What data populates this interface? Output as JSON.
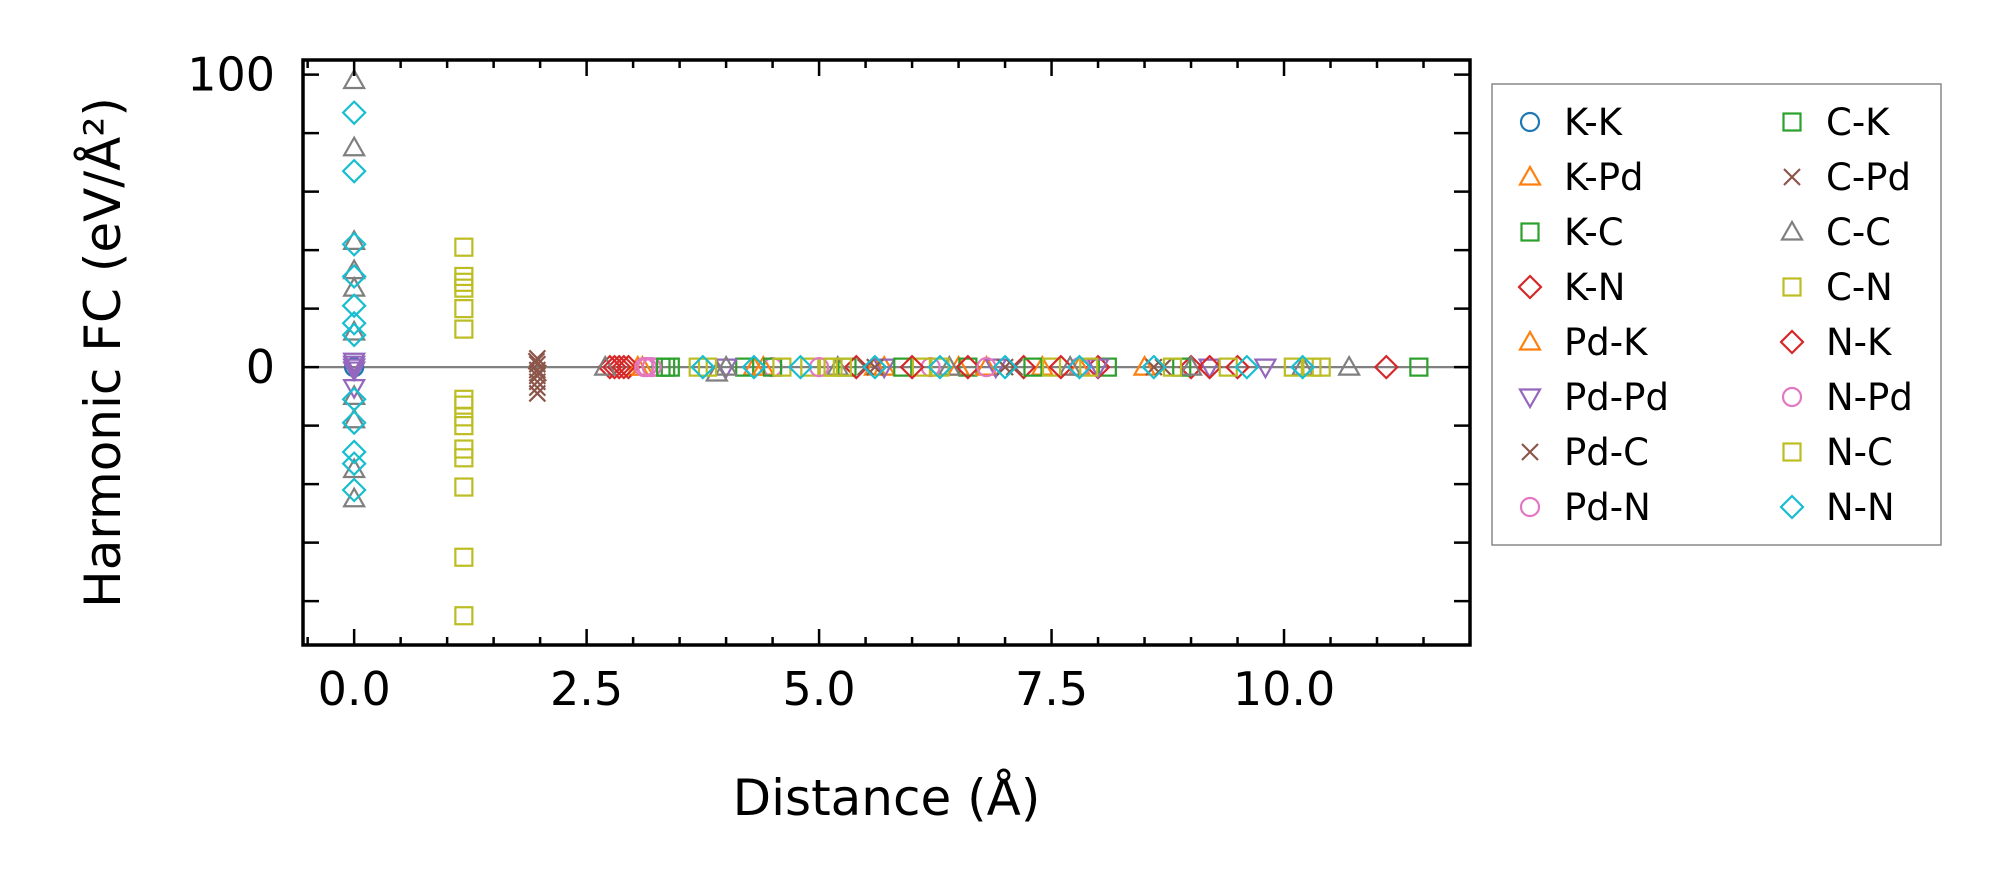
{
  "chart_data": {
    "type": "scatter",
    "xlabel": "Distance (Å)",
    "ylabel": "Harmonic FC (eV/Å²)",
    "xlim": [
      -0.55,
      12.0
    ],
    "ylim": [
      -95,
      105
    ],
    "x_ticks": [
      0.0,
      2.5,
      5.0,
      7.5,
      10.0
    ],
    "x_tick_labels": [
      "0.0",
      "2.5",
      "5.0",
      "7.5",
      "10.0"
    ],
    "y_ticks": [
      0,
      100
    ],
    "y_tick_labels": [
      "0",
      "100"
    ],
    "y_minor_ticks": [
      -80,
      -60,
      -40,
      -20,
      20,
      40,
      60,
      80
    ],
    "grid": false,
    "reference_line_y": 0,
    "legend_position": "outside-right",
    "legend_columns": 2,
    "series": [
      {
        "name": "K-K",
        "marker": "circle",
        "color": "#1f77b4",
        "x": [
          0.0,
          0.0
        ],
        "y": [
          0.0,
          0.0
        ]
      },
      {
        "name": "K-Pd",
        "marker": "triangle-up",
        "color": "#ff7f0e",
        "x": [
          3.05,
          4.3,
          5.6,
          6.5,
          7.4,
          8.5
        ],
        "y": [
          0,
          0,
          0,
          0,
          0,
          0
        ]
      },
      {
        "name": "K-C",
        "marker": "square",
        "color": "#2ca02c",
        "x": [
          3.3,
          3.4,
          4.2,
          5.3,
          6.6,
          8.1
        ],
        "y": [
          0,
          0,
          0,
          0,
          0,
          0
        ]
      },
      {
        "name": "K-N",
        "marker": "diamond",
        "color": "#d62728",
        "x": [
          2.75,
          2.85,
          2.95,
          5.4,
          6.6,
          7.2,
          8.0,
          9.0,
          9.5,
          11.1
        ],
        "y": [
          0,
          0,
          0,
          0,
          0,
          0,
          0,
          0,
          0,
          0
        ]
      },
      {
        "name": "Pd-K",
        "marker": "triangle-up",
        "color": "#ff7f0e",
        "x": [
          3.1,
          4.4,
          5.7,
          6.8,
          7.8
        ],
        "y": [
          0,
          0,
          0,
          0,
          0
        ]
      },
      {
        "name": "Pd-Pd",
        "marker": "triangle-down",
        "color": "#9467bd",
        "x": [
          0.0,
          0.0,
          0.0,
          0.0,
          0.0,
          4.0,
          5.7,
          6.9,
          8.0,
          9.2,
          9.8
        ],
        "y": [
          0.0,
          2.0,
          -1.0,
          -7.0,
          1.0,
          0,
          0,
          0,
          0,
          0,
          0
        ]
      },
      {
        "name": "Pd-C",
        "marker": "x",
        "color": "#8c564b",
        "x": [
          1.97,
          1.97,
          1.97,
          1.97,
          1.97,
          1.97,
          1.97,
          5.5,
          7.0,
          8.6
        ],
        "y": [
          3.0,
          1.0,
          -1.0,
          -3.0,
          -5.0,
          -7.0,
          -9.0,
          0,
          0,
          0
        ]
      },
      {
        "name": "Pd-N",
        "marker": "circle",
        "color": "#e377c2",
        "x": [
          3.15,
          3.2,
          4.5,
          6.2,
          7.8
        ],
        "y": [
          0,
          0,
          0,
          0,
          0
        ]
      },
      {
        "name": "C-K",
        "marker": "square",
        "color": "#2ca02c",
        "x": [
          3.35,
          4.5,
          5.9,
          7.3,
          8.9,
          11.45
        ],
        "y": [
          0,
          0,
          0,
          0,
          0,
          0
        ]
      },
      {
        "name": "C-Pd",
        "marker": "x",
        "color": "#8c564b",
        "x": [
          1.96,
          1.98,
          5.6,
          7.1,
          8.7
        ],
        "y": [
          2.0,
          -2.0,
          0,
          0,
          0
        ]
      },
      {
        "name": "C-C",
        "marker": "triangle-up",
        "color": "#7f7f7f",
        "x": [
          0.0,
          0.0,
          0.0,
          0.0,
          0.0,
          0.0,
          0.0,
          0.0,
          0.0,
          0.0,
          2.7,
          3.9,
          4.0,
          5.2,
          6.4,
          7.7,
          9.0,
          10.2,
          10.7
        ],
        "y": [
          98.0,
          75.0,
          43.0,
          33.0,
          27.0,
          -10.0,
          -18.0,
          -35.0,
          -45.0,
          12.0,
          0,
          -2.0,
          0,
          0,
          0,
          0,
          0,
          0,
          0
        ]
      },
      {
        "name": "C-N",
        "marker": "square",
        "color": "#bcbd22",
        "x": [
          1.18,
          1.18,
          1.18,
          1.18,
          1.18,
          1.18,
          1.18,
          1.18,
          1.18,
          1.18,
          1.18,
          1.18,
          1.18,
          1.18,
          1.18,
          3.7,
          4.9,
          5.1,
          6.1,
          7.5,
          8.8,
          10.1,
          10.4
        ],
        "y": [
          41.0,
          31.0,
          29.0,
          27.0,
          20.0,
          13.0,
          -11.0,
          -13.0,
          -17.0,
          -20.0,
          -28.0,
          -31.0,
          -41.0,
          -65.0,
          -85.0,
          0,
          0,
          0,
          0,
          0,
          0,
          0,
          0
        ]
      },
      {
        "name": "N-K",
        "marker": "diamond",
        "color": "#d62728",
        "x": [
          2.8,
          2.9,
          6.0,
          7.6,
          9.2
        ],
        "y": [
          0,
          0,
          0,
          0,
          0
        ]
      },
      {
        "name": "N-Pd",
        "marker": "circle",
        "color": "#e377c2",
        "x": [
          3.12,
          5.0,
          6.8
        ],
        "y": [
          0,
          0,
          0
        ]
      },
      {
        "name": "N-C",
        "marker": "square",
        "color": "#bcbd22",
        "x": [
          3.8,
          4.6,
          5.15,
          5.25,
          6.3,
          7.9,
          9.4,
          10.3
        ],
        "y": [
          0,
          0,
          0,
          0,
          0,
          0,
          0,
          0
        ]
      },
      {
        "name": "N-N",
        "marker": "diamond",
        "color": "#17becf",
        "x": [
          0.0,
          0.0,
          0.0,
          0.0,
          0.0,
          0.0,
          0.0,
          0.0,
          0.0,
          0.0,
          0.0,
          0.0,
          3.75,
          4.3,
          4.8,
          5.6,
          6.3,
          7.0,
          7.8,
          8.6,
          9.6,
          10.2
        ],
        "y": [
          87.0,
          67.0,
          42.0,
          31.0,
          21.0,
          15.0,
          11.0,
          -11.0,
          -19.0,
          -29.0,
          -33.0,
          -42.0,
          0,
          0,
          0,
          0,
          0,
          0,
          0,
          0,
          0,
          0
        ]
      }
    ]
  }
}
